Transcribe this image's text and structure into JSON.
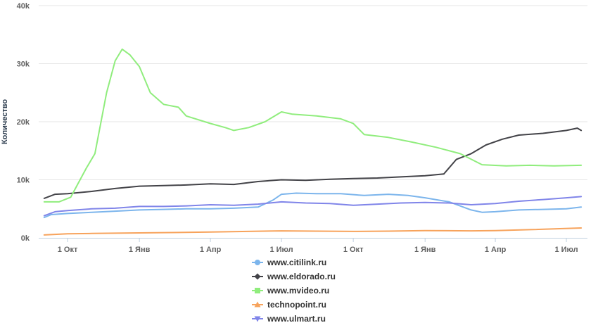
{
  "chart_data": {
    "type": "line",
    "title": "",
    "xlabel": "",
    "ylabel": "Количество",
    "grid": true,
    "legend_position": "bottom",
    "xlim": [
      "2015-08-25",
      "2017-07-28"
    ],
    "ylim": [
      0,
      40000
    ],
    "y_ticks": [
      {
        "value": 0,
        "label": "0k"
      },
      {
        "value": 10000,
        "label": "10k"
      },
      {
        "value": 20000,
        "label": "20k"
      },
      {
        "value": 30000,
        "label": "30k"
      },
      {
        "value": 40000,
        "label": "40k"
      }
    ],
    "x_ticks": [
      {
        "date": "2015-10-01",
        "label": "1 Окт"
      },
      {
        "date": "2016-01-01",
        "label": "1 Янв"
      },
      {
        "date": "2016-04-01",
        "label": "1 Апр"
      },
      {
        "date": "2016-07-01",
        "label": "1 Июл"
      },
      {
        "date": "2016-10-01",
        "label": "1 Окт"
      },
      {
        "date": "2017-01-01",
        "label": "1 Янв"
      },
      {
        "date": "2017-04-01",
        "label": "1 Апр"
      },
      {
        "date": "2017-07-01",
        "label": "1 Июл"
      }
    ],
    "series": [
      {
        "name": "www.citilink.ru",
        "color": "#7cb5ec",
        "marker": "circle",
        "points": [
          [
            "2015-09-01",
            3500
          ],
          [
            "2015-09-10",
            4000
          ],
          [
            "2015-10-01",
            4200
          ],
          [
            "2015-11-01",
            4400
          ],
          [
            "2015-12-01",
            4600
          ],
          [
            "2016-01-01",
            4800
          ],
          [
            "2016-02-01",
            4900
          ],
          [
            "2016-03-01",
            5000
          ],
          [
            "2016-04-01",
            5000
          ],
          [
            "2016-05-01",
            5100
          ],
          [
            "2016-06-01",
            5300
          ],
          [
            "2016-06-20",
            6500
          ],
          [
            "2016-07-01",
            7500
          ],
          [
            "2016-07-20",
            7700
          ],
          [
            "2016-08-15",
            7600
          ],
          [
            "2016-09-15",
            7600
          ],
          [
            "2016-10-15",
            7300
          ],
          [
            "2016-11-15",
            7500
          ],
          [
            "2016-12-10",
            7300
          ],
          [
            "2017-01-01",
            6900
          ],
          [
            "2017-02-01",
            6200
          ],
          [
            "2017-03-01",
            4800
          ],
          [
            "2017-03-15",
            4400
          ],
          [
            "2017-04-01",
            4500
          ],
          [
            "2017-05-01",
            4800
          ],
          [
            "2017-06-01",
            4900
          ],
          [
            "2017-07-01",
            5000
          ],
          [
            "2017-07-20",
            5300
          ]
        ]
      },
      {
        "name": "www.eldorado.ru",
        "color": "#434348",
        "marker": "diamond",
        "points": [
          [
            "2015-09-01",
            6800
          ],
          [
            "2015-09-15",
            7500
          ],
          [
            "2015-10-01",
            7600
          ],
          [
            "2015-11-01",
            8000
          ],
          [
            "2015-12-01",
            8500
          ],
          [
            "2016-01-01",
            8900
          ],
          [
            "2016-02-01",
            9000
          ],
          [
            "2016-03-01",
            9100
          ],
          [
            "2016-04-01",
            9300
          ],
          [
            "2016-05-01",
            9200
          ],
          [
            "2016-06-01",
            9700
          ],
          [
            "2016-07-01",
            10000
          ],
          [
            "2016-08-01",
            9900
          ],
          [
            "2016-09-01",
            10100
          ],
          [
            "2016-10-01",
            10200
          ],
          [
            "2016-11-01",
            10300
          ],
          [
            "2016-12-01",
            10500
          ],
          [
            "2017-01-01",
            10700
          ],
          [
            "2017-01-25",
            11000
          ],
          [
            "2017-02-10",
            13500
          ],
          [
            "2017-03-01",
            14500
          ],
          [
            "2017-03-20",
            16000
          ],
          [
            "2017-04-10",
            17000
          ],
          [
            "2017-05-01",
            17700
          ],
          [
            "2017-06-01",
            18000
          ],
          [
            "2017-07-01",
            18500
          ],
          [
            "2017-07-15",
            18900
          ],
          [
            "2017-07-20",
            18500
          ]
        ]
      },
      {
        "name": "www.mvideo.ru",
        "color": "#90ed7d",
        "marker": "square",
        "points": [
          [
            "2015-09-01",
            6200
          ],
          [
            "2015-09-20",
            6200
          ],
          [
            "2015-10-05",
            7000
          ],
          [
            "2015-10-15",
            9500
          ],
          [
            "2015-10-25",
            12000
          ],
          [
            "2015-11-05",
            14500
          ],
          [
            "2015-11-20",
            25000
          ],
          [
            "2015-12-01",
            30500
          ],
          [
            "2015-12-10",
            32500
          ],
          [
            "2015-12-20",
            31500
          ],
          [
            "2016-01-01",
            29500
          ],
          [
            "2016-01-15",
            25000
          ],
          [
            "2016-02-01",
            23000
          ],
          [
            "2016-02-20",
            22500
          ],
          [
            "2016-03-01",
            21000
          ],
          [
            "2016-04-01",
            19700
          ],
          [
            "2016-04-20",
            19000
          ],
          [
            "2016-05-01",
            18500
          ],
          [
            "2016-05-20",
            19000
          ],
          [
            "2016-06-10",
            20000
          ],
          [
            "2016-07-01",
            21700
          ],
          [
            "2016-07-15",
            21300
          ],
          [
            "2016-08-15",
            21000
          ],
          [
            "2016-09-15",
            20500
          ],
          [
            "2016-10-01",
            19700
          ],
          [
            "2016-10-15",
            17800
          ],
          [
            "2016-11-15",
            17300
          ],
          [
            "2016-12-15",
            16500
          ],
          [
            "2017-01-15",
            15600
          ],
          [
            "2017-02-15",
            14500
          ],
          [
            "2017-03-15",
            12600
          ],
          [
            "2017-04-15",
            12400
          ],
          [
            "2017-05-15",
            12500
          ],
          [
            "2017-06-15",
            12400
          ],
          [
            "2017-07-20",
            12500
          ]
        ]
      },
      {
        "name": "technopoint.ru",
        "color": "#f7a35c",
        "marker": "triangle",
        "points": [
          [
            "2015-09-01",
            500
          ],
          [
            "2015-10-01",
            700
          ],
          [
            "2015-11-01",
            750
          ],
          [
            "2016-01-01",
            850
          ],
          [
            "2016-04-01",
            1000
          ],
          [
            "2016-07-01",
            1200
          ],
          [
            "2016-08-15",
            1150
          ],
          [
            "2016-10-01",
            1100
          ],
          [
            "2016-11-15",
            1150
          ],
          [
            "2017-01-01",
            1250
          ],
          [
            "2017-03-01",
            1200
          ],
          [
            "2017-04-01",
            1250
          ],
          [
            "2017-05-15",
            1400
          ],
          [
            "2017-07-20",
            1700
          ]
        ]
      },
      {
        "name": "www.ulmart.ru",
        "color": "#8085e9",
        "marker": "triangle-down",
        "points": [
          [
            "2015-09-01",
            3800
          ],
          [
            "2015-09-15",
            4500
          ],
          [
            "2015-10-01",
            4700
          ],
          [
            "2015-11-01",
            5000
          ],
          [
            "2015-12-01",
            5100
          ],
          [
            "2016-01-01",
            5400
          ],
          [
            "2016-02-01",
            5400
          ],
          [
            "2016-03-01",
            5500
          ],
          [
            "2016-04-01",
            5700
          ],
          [
            "2016-05-01",
            5600
          ],
          [
            "2016-06-01",
            5800
          ],
          [
            "2016-07-01",
            6200
          ],
          [
            "2016-08-01",
            6000
          ],
          [
            "2016-09-01",
            5900
          ],
          [
            "2016-10-01",
            5600
          ],
          [
            "2016-11-01",
            5800
          ],
          [
            "2016-12-01",
            6000
          ],
          [
            "2017-01-01",
            6100
          ],
          [
            "2017-02-01",
            6000
          ],
          [
            "2017-03-01",
            5700
          ],
          [
            "2017-04-01",
            5900
          ],
          [
            "2017-05-01",
            6300
          ],
          [
            "2017-06-01",
            6600
          ],
          [
            "2017-07-01",
            6900
          ],
          [
            "2017-07-20",
            7100
          ]
        ]
      }
    ]
  }
}
